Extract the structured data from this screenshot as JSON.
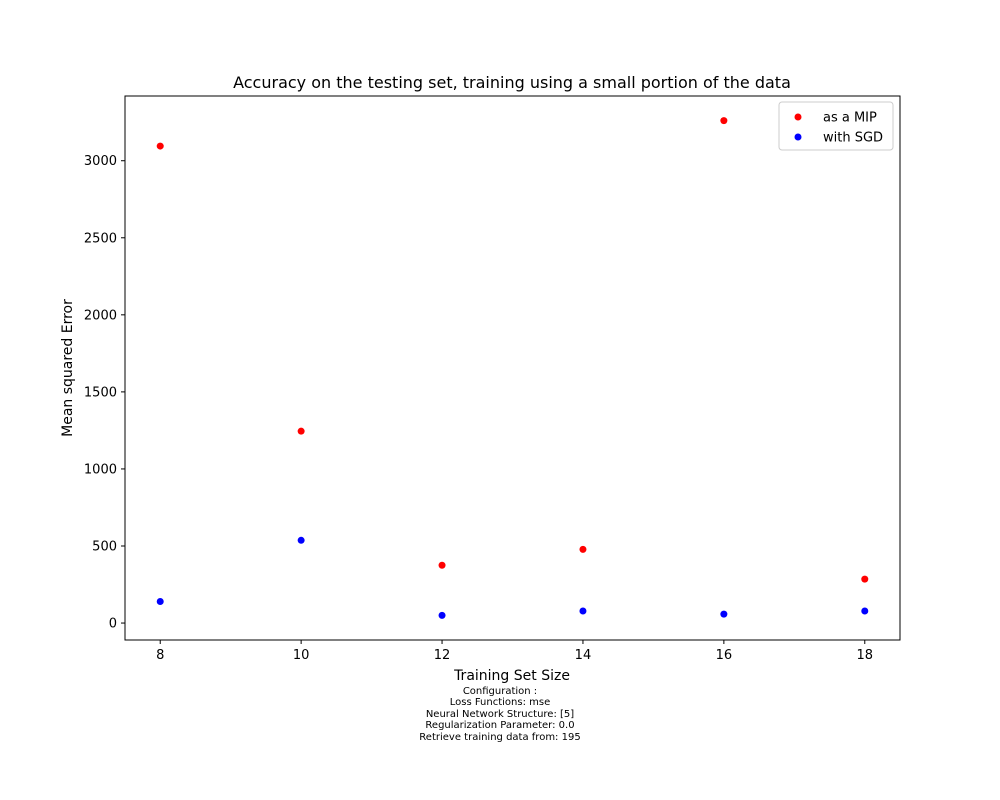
{
  "chart_data": {
    "type": "scatter",
    "title": "Accuracy on the testing set, training using a small portion of the data",
    "xlabel": "Training Set Size",
    "ylabel": "Mean squared Error",
    "xlim": [
      7.5,
      18.5
    ],
    "ylim": [
      -110,
      3420
    ],
    "xticks": [
      8,
      10,
      12,
      14,
      16,
      18
    ],
    "yticks": [
      0,
      500,
      1000,
      1500,
      2000,
      2500,
      3000
    ],
    "grid": false,
    "legend_position": "top-right",
    "series": [
      {
        "name": "as a MIP",
        "color": "#ff0000",
        "points": [
          {
            "x": 8,
            "y": 3095
          },
          {
            "x": 10,
            "y": 1245
          },
          {
            "x": 12,
            "y": 375
          },
          {
            "x": 14,
            "y": 478
          },
          {
            "x": 16,
            "y": 3260
          },
          {
            "x": 18,
            "y": 285
          }
        ]
      },
      {
        "name": "with SGD",
        "color": "#0000ff",
        "points": [
          {
            "x": 8,
            "y": 140
          },
          {
            "x": 10,
            "y": 537
          },
          {
            "x": 12,
            "y": 50
          },
          {
            "x": 14,
            "y": 78
          },
          {
            "x": 16,
            "y": 58
          },
          {
            "x": 18,
            "y": 78
          }
        ]
      }
    ]
  },
  "caption": {
    "lines": [
      "Configuration :",
      "Loss Functions: mse",
      "Neural Network Structure: [5]",
      "Regularization Parameter: 0.0",
      "Retrieve training data from: 195"
    ]
  }
}
